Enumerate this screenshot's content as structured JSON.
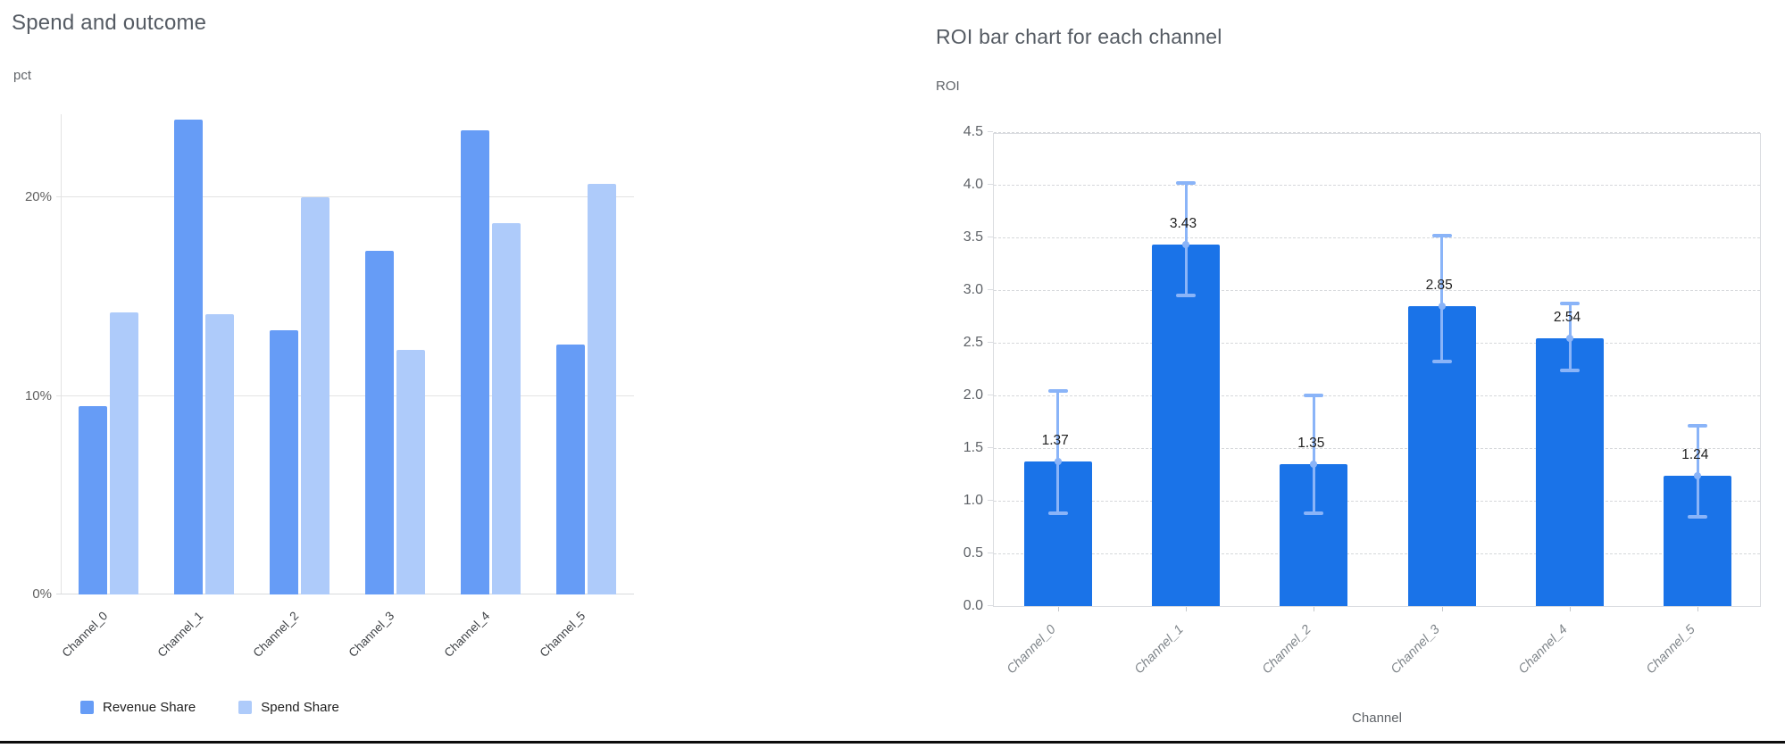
{
  "left_chart": {
    "title": "Spend and outcome",
    "y_axis_label": "pct"
  },
  "right_chart": {
    "title": "ROI bar chart for each channel",
    "y_axis_label": "ROI",
    "x_axis_label": "Channel"
  },
  "chart_data": [
    {
      "id": "spend-and-outcome",
      "type": "bar",
      "title": "Spend and outcome",
      "xlabel": "",
      "ylabel": "pct",
      "categories": [
        "Channel_0",
        "Channel_1",
        "Channel_2",
        "Channel_3",
        "Channel_4",
        "Channel_5"
      ],
      "series": [
        {
          "name": "Revenue Share",
          "color": "#669cf6",
          "values": [
            9.5,
            23.9,
            13.3,
            17.3,
            23.4,
            12.6
          ]
        },
        {
          "name": "Spend Share",
          "color": "#aecbfa",
          "values": [
            14.2,
            14.1,
            20.0,
            12.3,
            18.7,
            20.7
          ]
        }
      ],
      "y_ticks": [
        {
          "value": 0,
          "label": "0%"
        },
        {
          "value": 10,
          "label": "10%"
        },
        {
          "value": 20,
          "label": "20%"
        }
      ],
      "ylim": [
        0,
        24.2
      ],
      "grid": "solid-horizontal",
      "legend_position": "bottom"
    },
    {
      "id": "roi-by-channel",
      "type": "bar",
      "title": "ROI bar chart for each channel",
      "xlabel": "Channel",
      "ylabel": "ROI",
      "categories": [
        "Channel_0",
        "Channel_1",
        "Channel_2",
        "Channel_3",
        "Channel_4",
        "Channel_5"
      ],
      "values": [
        1.37,
        3.43,
        1.35,
        2.85,
        2.54,
        1.24
      ],
      "value_labels": [
        "1.37",
        "3.43",
        "1.35",
        "2.85",
        "2.54",
        "1.24"
      ],
      "error_bars": {
        "low": [
          0.88,
          2.95,
          0.88,
          2.32,
          2.24,
          0.85
        ],
        "high": [
          2.04,
          4.02,
          2.0,
          3.52,
          2.87,
          1.71
        ]
      },
      "bar_color": "#1a73e8",
      "error_color": "#8ab4f8",
      "y_ticks": [
        {
          "value": 0.0,
          "label": "0.0"
        },
        {
          "value": 0.5,
          "label": "0.5"
        },
        {
          "value": 1.0,
          "label": "1.0"
        },
        {
          "value": 1.5,
          "label": "1.5"
        },
        {
          "value": 2.0,
          "label": "2.0"
        },
        {
          "value": 2.5,
          "label": "2.5"
        },
        {
          "value": 3.0,
          "label": "3.0"
        },
        {
          "value": 3.5,
          "label": "3.5"
        },
        {
          "value": 4.0,
          "label": "4.0"
        },
        {
          "value": 4.5,
          "label": "4.5"
        }
      ],
      "ylim": [
        0,
        4.5
      ],
      "grid": "dashed-horizontal",
      "legend_position": "none"
    }
  ]
}
